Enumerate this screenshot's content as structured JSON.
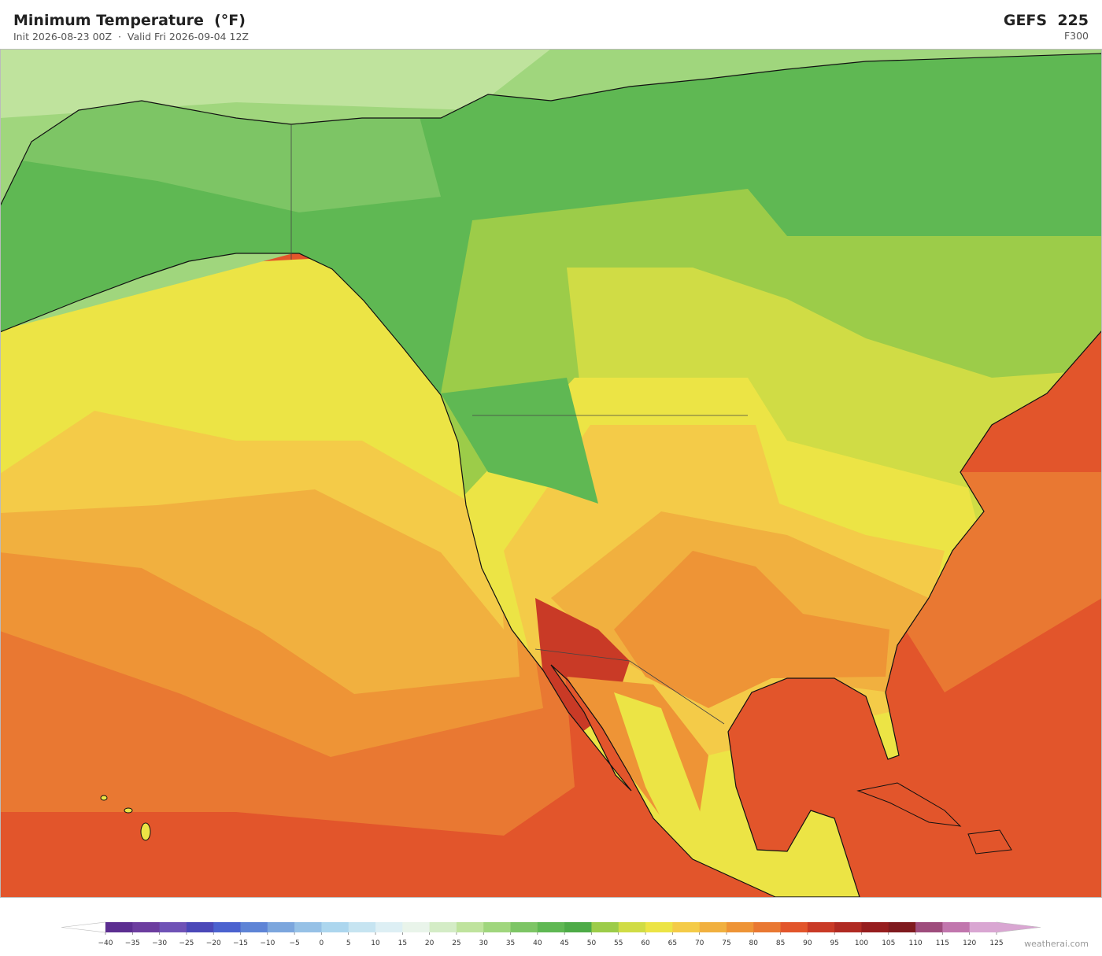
{
  "header": {
    "title": "Minimum Temperature  (°F)",
    "subtitle": "Init 2026-08-23 00Z  ·  Valid Fri 2026-09-04 12Z",
    "model": "GEFS  225",
    "forecast_hour": "F300"
  },
  "colorbar": {
    "labels": [
      "−40",
      "−35",
      "−30",
      "−25",
      "−20",
      "−15",
      "−10",
      "−5",
      "0",
      "5",
      "10",
      "15",
      "20",
      "25",
      "30",
      "35",
      "40",
      "45",
      "50",
      "55",
      "60",
      "65",
      "70",
      "75",
      "80",
      "85",
      "90",
      "95",
      "100",
      "105",
      "110",
      "115",
      "120",
      "125"
    ],
    "colors": [
      "#5c2e91",
      "#6c3d9f",
      "#6f52b6",
      "#4b48b8",
      "#4b62cf",
      "#5e84d6",
      "#7ca6dd",
      "#96c1e6",
      "#acd6ee",
      "#c6e4f1",
      "#ddeff4",
      "#e9f4ea",
      "#d4ecc6",
      "#bfe39d",
      "#a0d67d",
      "#7dc565",
      "#5fb853",
      "#4dab47",
      "#9ccc49",
      "#d0dc45",
      "#ece445",
      "#f4cb48",
      "#f1b03f",
      "#ee9436",
      "#e97832",
      "#e2552b",
      "#c93a26",
      "#b02a22",
      "#961d1e",
      "#7f1a1e",
      "#9e4c7c",
      "#c176ad",
      "#d9a6d2"
    ],
    "under_color": "#ffffff",
    "over_color": "#d9a6d2"
  },
  "credit": "weatherai.com"
}
